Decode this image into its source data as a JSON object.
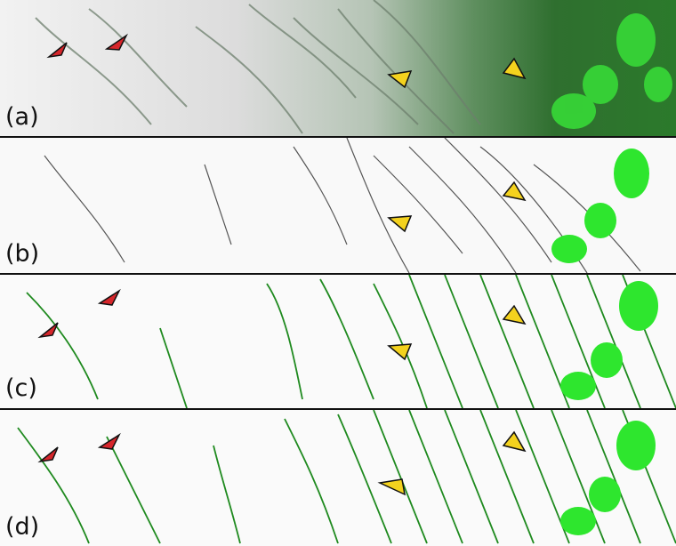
{
  "figure": {
    "panels": [
      {
        "label": "(a)"
      },
      {
        "label": "(b)"
      },
      {
        "label": "(c)"
      },
      {
        "label": "(d)"
      }
    ],
    "colors": {
      "marker_red": "#d6262b",
      "marker_yellow": "#f4d21e",
      "neuron_green": "#2ee62e",
      "fiber_green": "#1f8a1f",
      "fiber_dark": "#3a3a3a"
    }
  }
}
